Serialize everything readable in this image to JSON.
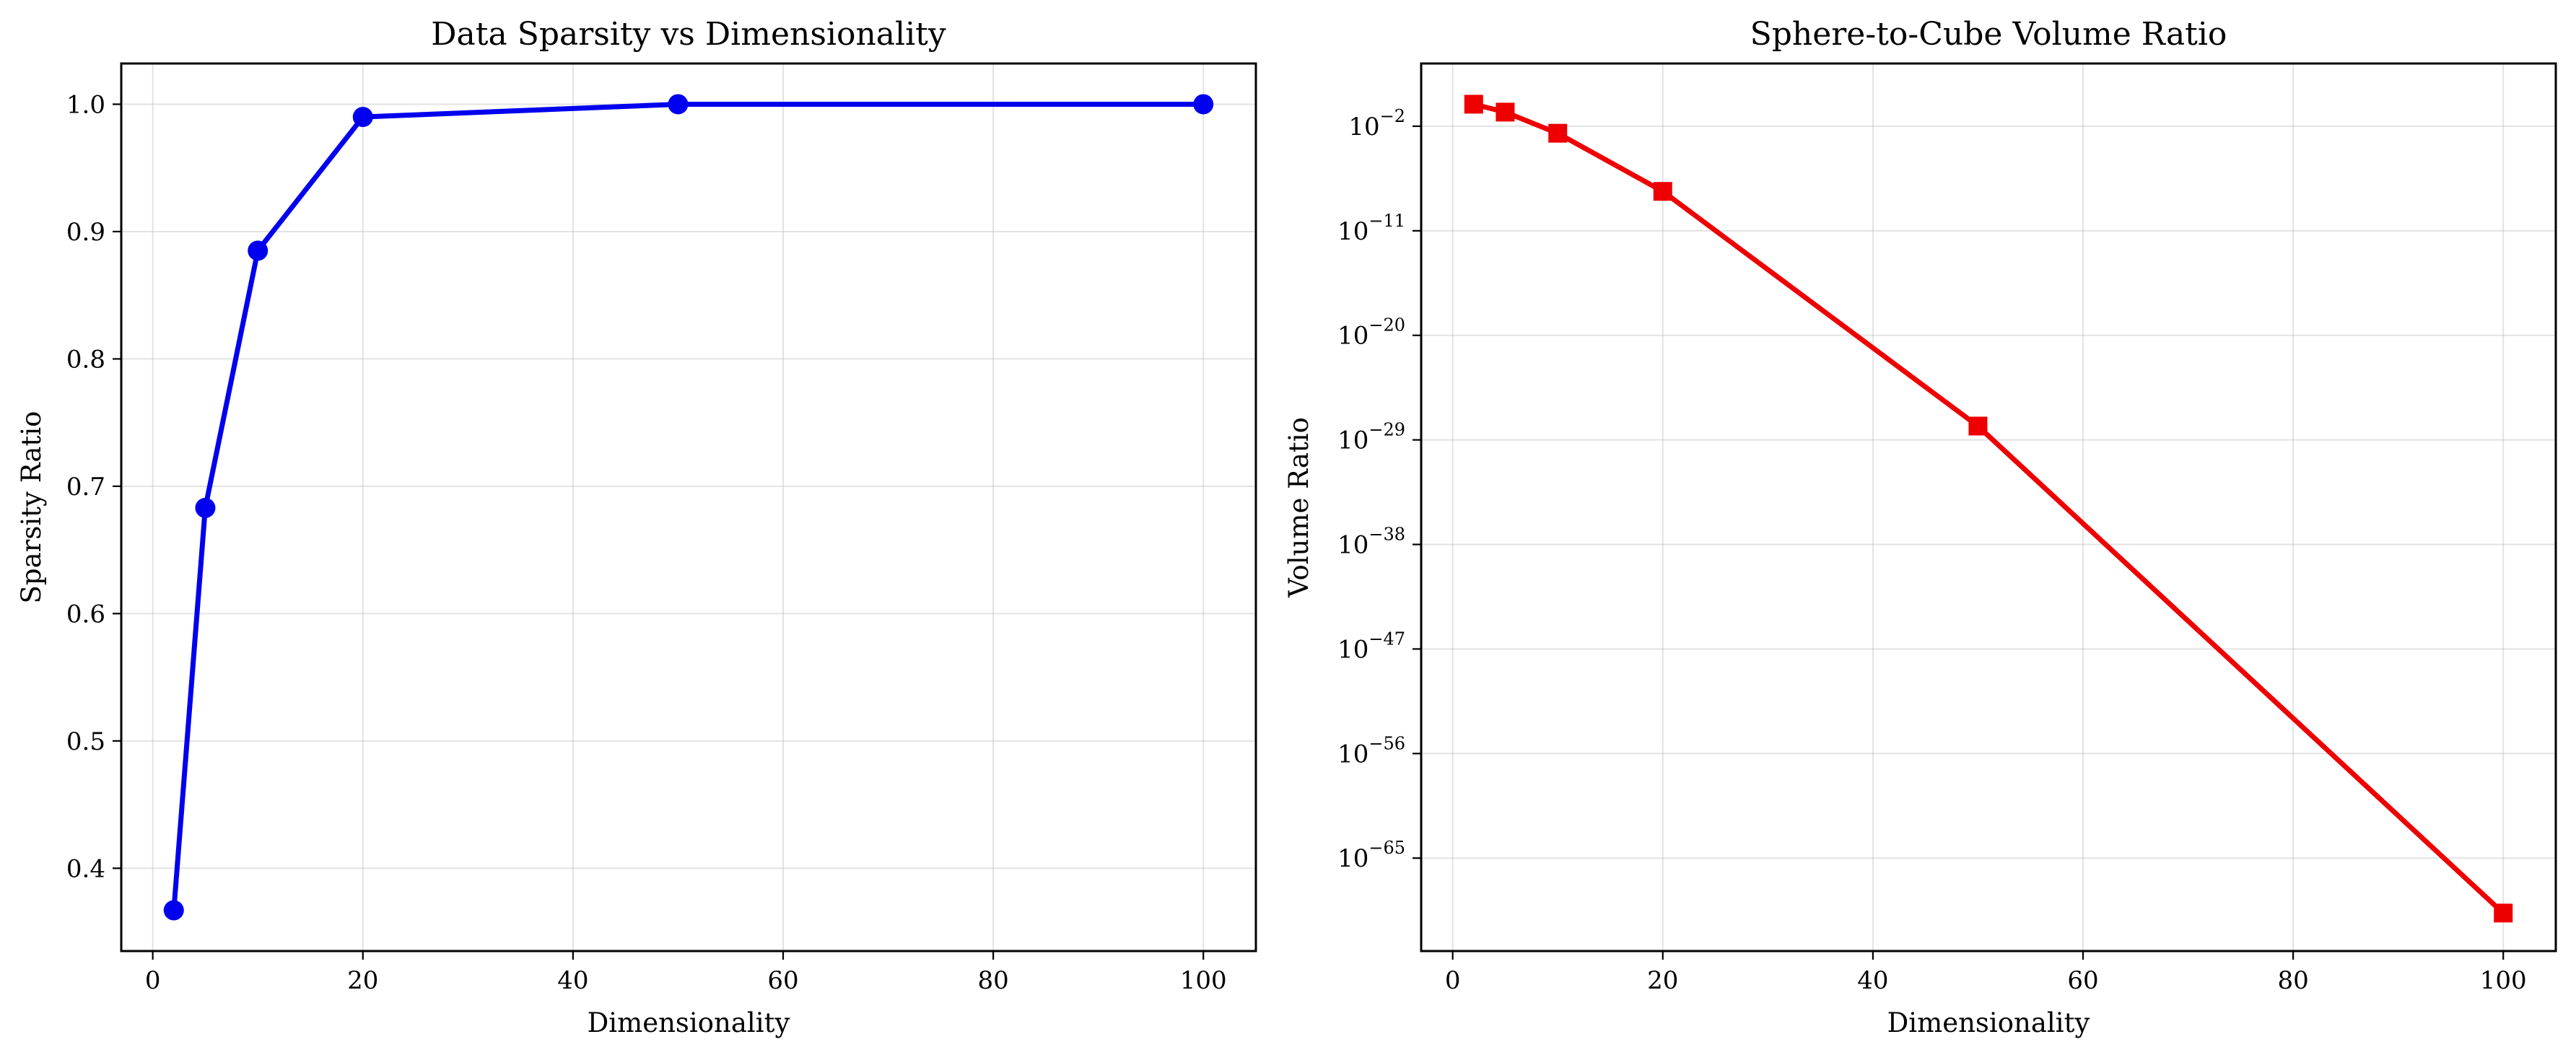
{
  "chart_data": [
    {
      "type": "line",
      "title": "Data Sparsity vs Dimensionality",
      "xlabel": "Dimensionality",
      "ylabel": "Sparsity Ratio",
      "xlim": [
        -3,
        105
      ],
      "ylim": [
        0.335,
        1.032
      ],
      "xticks": [
        0,
        20,
        40,
        60,
        80,
        100
      ],
      "yticks": [
        0.4,
        0.5,
        0.6,
        0.7,
        0.8,
        0.9,
        1.0
      ],
      "ytick_labels": [
        "0.4",
        "0.5",
        "0.6",
        "0.7",
        "0.8",
        "0.9",
        "1.0"
      ],
      "grid": true,
      "y_scale": "linear",
      "series": [
        {
          "x": [
            2,
            5,
            10,
            20,
            50,
            100
          ],
          "values": [
            0.367,
            0.683,
            0.885,
            0.99,
            1.0,
            1.0
          ],
          "color": "#0000ee",
          "marker": "circle"
        }
      ]
    },
    {
      "type": "line",
      "title": "Sphere-to-Cube Volume Ratio",
      "xlabel": "Dimensionality",
      "ylabel": "Volume Ratio",
      "xlim": [
        -3,
        105
      ],
      "ylim_exponent": [
        -73,
        3.4
      ],
      "xticks": [
        0,
        20,
        40,
        60,
        80,
        100
      ],
      "ytick_exponents": [
        -2,
        -11,
        -20,
        -29,
        -38,
        -47,
        -56,
        -65
      ],
      "ytick_base": "10",
      "grid": true,
      "y_scale": "log",
      "series": [
        {
          "x": [
            2,
            5,
            10,
            20,
            50,
            100
          ],
          "values": [
            0.785,
            0.164,
            0.00249,
            2.46e-08,
            1.54e-28,
            1.87e-70
          ],
          "log10_values": [
            -0.105,
            -0.785,
            -2.604,
            -7.609,
            -27.81,
            -69.73
          ],
          "color": "#ee0000",
          "marker": "square"
        }
      ]
    }
  ]
}
